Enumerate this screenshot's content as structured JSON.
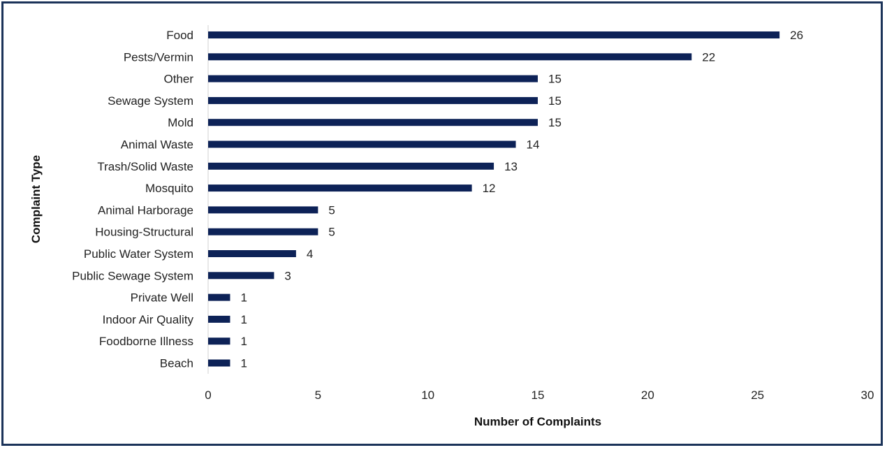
{
  "chart_data": {
    "type": "bar",
    "orientation": "horizontal",
    "categories": [
      "Food",
      "Pests/Vermin",
      "Other",
      "Sewage System",
      "Mold",
      "Animal Waste",
      "Trash/Solid Waste",
      "Mosquito",
      "Animal Harborage",
      "Housing-Structural",
      "Public Water System",
      "Public Sewage System",
      "Private Well",
      "Indoor Air Quality",
      "Foodborne Illness",
      "Beach"
    ],
    "values": [
      26,
      22,
      15,
      15,
      15,
      14,
      13,
      12,
      5,
      5,
      4,
      3,
      1,
      1,
      1,
      1
    ],
    "xlabel": "Number of Complaints",
    "ylabel": "Complaint Type",
    "xlim": [
      0,
      30
    ],
    "xticks": [
      "0",
      "5",
      "10",
      "15",
      "20",
      "25",
      "30"
    ],
    "grid": false,
    "bar_color": "#0d2257",
    "frame_color": "#1b3359"
  }
}
